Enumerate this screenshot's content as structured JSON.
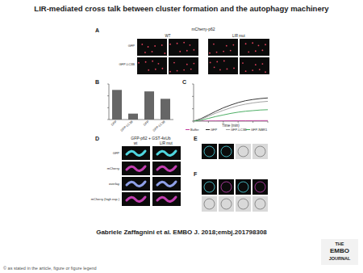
{
  "header": {
    "title": "LIR-mediated cross talk between cluster formation and the autophagy machinery"
  },
  "panels": {
    "a": {
      "label": "A",
      "title": "mCherry-p62",
      "columns": [
        "WT",
        "LIR mut"
      ],
      "rows": [
        "GFP",
        "GFP-LC3B"
      ]
    },
    "b": {
      "label": "B"
    },
    "c": {
      "label": "C"
    },
    "d": {
      "label": "D",
      "title": "GFP-p62 + GST-4xUb",
      "columns": [
        "wt",
        "LIR mut"
      ],
      "rows": [
        "GFP",
        "mCherry",
        "overlay",
        "mCherry (high exp.)"
      ]
    },
    "e": {
      "label": "E"
    },
    "f": {
      "label": "F"
    }
  },
  "chart_data": [
    {
      "type": "bar",
      "categories": [
        "GFP",
        "GFP-LC3B",
        "GFP",
        "GFP-LC3B"
      ],
      "values": [
        100,
        20,
        95,
        70
      ],
      "color": "#666666",
      "ylim": [
        0,
        120
      ],
      "yticks": [
        0,
        40,
        80,
        120
      ],
      "tick_labels": "x"
    },
    {
      "type": "line",
      "x": [
        0,
        1,
        2,
        3,
        4,
        5,
        6,
        7,
        8,
        9,
        10
      ],
      "xlabel": "Time (min)",
      "series": [
        {
          "name": "Buffer",
          "color": "#c0399b",
          "values": [
            0,
            0,
            50,
            80,
            100,
            120,
            140,
            150,
            160,
            170,
            180
          ]
        },
        {
          "name": "GFP",
          "color": "#222222",
          "values": [
            0,
            800,
            2000,
            3200,
            4300,
            5200,
            6000,
            6600,
            7000,
            7300,
            7500
          ]
        },
        {
          "name": "GFP-LC3B",
          "color": "#999999",
          "values": [
            0,
            600,
            1600,
            2600,
            3500,
            4300,
            5000,
            5500,
            5900,
            6200,
            6400
          ]
        },
        {
          "name": "GFP-NBR1",
          "color": "#3aa655",
          "values": [
            0,
            300,
            900,
            1500,
            2000,
            2500,
            2900,
            3200,
            3400,
            3600,
            3700
          ]
        }
      ],
      "xlim": [
        0,
        10
      ],
      "xticks": [
        0,
        2,
        4,
        6,
        8,
        10
      ],
      "ylim": [
        0,
        12000
      ],
      "yticks": [
        0,
        4000,
        8000,
        12000
      ],
      "tick_labels": false,
      "legend": "bottom"
    }
  ],
  "citation": "Gabriele Zaffagnini et al. EMBO J. 2018;embj.201798308",
  "logo": [
    "THE",
    "EMBO",
    "JOURNAL"
  ],
  "footer": "© as stated in the article, figure or figure legend"
}
